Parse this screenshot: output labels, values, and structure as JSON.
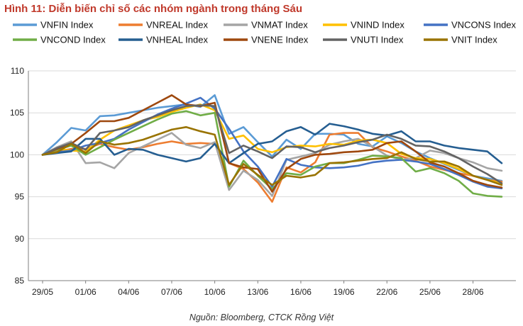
{
  "title": "Hình 11: Diễn biến chỉ số các nhóm ngành trong tháng Sáu",
  "source": "Nguồn: Bloomberg, CTCK Rồng Việt",
  "chart_data": {
    "type": "line",
    "title": "Hình 11: Diễn biến chỉ số các nhóm ngành trong tháng Sáu",
    "xlabel": "",
    "ylabel": "",
    "ylim": [
      85,
      110
    ],
    "yticks": [
      85,
      90,
      95,
      100,
      105,
      110
    ],
    "x_tick_labels": [
      "29/05",
      "01/06",
      "04/06",
      "07/06",
      "10/06",
      "13/06",
      "16/06",
      "19/06",
      "22/06",
      "25/06",
      "28/06"
    ],
    "categories": [
      "29/05",
      "30/05",
      "31/05",
      "01/06",
      "02/06",
      "03/06",
      "04/06",
      "05/06",
      "06/06",
      "07/06",
      "08/06",
      "09/06",
      "10/06",
      "11/06",
      "12/06",
      "13/06",
      "14/06",
      "15/06",
      "16/06",
      "17/06",
      "18/06",
      "19/06",
      "20/06",
      "21/06",
      "22/06",
      "23/06",
      "24/06",
      "25/06",
      "26/06",
      "27/06",
      "28/06",
      "29/06",
      "30/06"
    ],
    "grid": "horizontal",
    "legend_position": "top",
    "series": [
      {
        "name": "VNFIN Index",
        "color": "#5b9bd5",
        "values": [
          100,
          101.5,
          103.2,
          102.9,
          104.6,
          104.7,
          105.0,
          105.3,
          105.6,
          105.8,
          106.0,
          105.7,
          107.1,
          102.5,
          103.3,
          101.5,
          99.8,
          101.8,
          100.7,
          102.5,
          102.5,
          102.4,
          101.3,
          101.0,
          102.2,
          101.4,
          100.4,
          99.6,
          98.9,
          98.2,
          97.5,
          97.2,
          96.9
        ]
      },
      {
        "name": "VNREAL Index",
        "color": "#ed7d31",
        "values": [
          100,
          100.4,
          100.7,
          100.7,
          101.3,
          100.9,
          100.6,
          100.9,
          101.3,
          101.6,
          101.3,
          101.4,
          101.3,
          99.0,
          98.3,
          96.7,
          94.4,
          98.5,
          97.9,
          99.1,
          102.4,
          102.6,
          102.6,
          100.9,
          100.4,
          99.8,
          99.3,
          98.6,
          98.2,
          97.8,
          97.5,
          97.0,
          96.8
        ]
      },
      {
        "name": "VNMAT Index",
        "color": "#a5a5a5",
        "values": [
          100,
          100.9,
          101.6,
          99.0,
          99.1,
          98.4,
          100.2,
          101.0,
          101.8,
          102.6,
          101.2,
          100.8,
          101.5,
          95.8,
          98.1,
          97.0,
          95.1,
          99.4,
          99.8,
          100.2,
          101.2,
          101.6,
          101.9,
          101.0,
          99.9,
          99.4,
          99.6,
          100.5,
          100.2,
          99.6,
          99.1,
          98.4,
          98.1
        ]
      },
      {
        "name": "VNIND Index",
        "color": "#ffc000",
        "values": [
          100,
          100.7,
          100.5,
          100.4,
          101.8,
          102.9,
          103.5,
          104.1,
          104.5,
          105.1,
          105.6,
          106.0,
          105.3,
          101.9,
          102.3,
          100.7,
          100.3,
          100.9,
          101.1,
          101.0,
          101.3,
          101.2,
          101.7,
          101.8,
          101.4,
          100.1,
          99.6,
          99.5,
          99.0,
          98.3,
          97.5,
          97.0,
          96.6
        ]
      },
      {
        "name": "VNCONS Index",
        "color": "#4472c4",
        "values": [
          100,
          100.3,
          100.5,
          101.1,
          101.4,
          101.9,
          103.0,
          103.9,
          104.8,
          105.5,
          106.1,
          106.8,
          105.5,
          103.1,
          100.4,
          98.6,
          96.2,
          99.5,
          98.8,
          98.5,
          98.4,
          98.5,
          98.7,
          99.1,
          99.3,
          99.4,
          99.2,
          98.9,
          98.3,
          97.6,
          96.8,
          96.2,
          96.0
        ]
      },
      {
        "name": "VNCOND Index",
        "color": "#70ad47",
        "values": [
          100,
          100.6,
          101.1,
          100.0,
          100.9,
          101.8,
          102.6,
          103.4,
          104.2,
          104.9,
          105.2,
          104.7,
          105.0,
          96.2,
          99.3,
          97.5,
          95.9,
          97.8,
          97.6,
          98.6,
          99.0,
          99.0,
          99.4,
          99.9,
          99.8,
          99.6,
          98.0,
          98.4,
          97.8,
          96.9,
          95.4,
          95.1,
          95.0
        ]
      },
      {
        "name": "VNHEAL Index",
        "color": "#255e91",
        "values": [
          100,
          100.2,
          100.4,
          101.9,
          101.9,
          100.0,
          100.7,
          100.6,
          100.0,
          99.6,
          99.2,
          99.6,
          101.3,
          99.0,
          100.2,
          101.3,
          101.6,
          102.8,
          103.3,
          102.4,
          103.7,
          103.4,
          103.0,
          102.5,
          102.3,
          102.8,
          101.6,
          101.6,
          101.1,
          100.8,
          100.6,
          100.4,
          99.0
        ]
      },
      {
        "name": "VNENE Index",
        "color": "#9e480e",
        "values": [
          100,
          100.7,
          101.3,
          102.6,
          104.0,
          104.0,
          104.4,
          105.3,
          106.2,
          107.1,
          106.0,
          105.8,
          106.2,
          99.0,
          98.5,
          98.3,
          95.6,
          98.3,
          99.5,
          100.0,
          100.1,
          100.3,
          100.4,
          100.6,
          101.4,
          101.6,
          100.4,
          99.1,
          98.6,
          97.8,
          96.9,
          96.4,
          96.1
        ]
      },
      {
        "name": "VNUTI Index",
        "color": "#636363",
        "values": [
          100,
          100.8,
          101.4,
          100.6,
          102.6,
          102.9,
          103.3,
          104.1,
          104.7,
          105.3,
          105.8,
          105.9,
          105.8,
          100.2,
          101.1,
          100.4,
          99.6,
          101.0,
          100.9,
          100.3,
          100.8,
          101.1,
          101.5,
          101.8,
          102.4,
          101.9,
          101.1,
          101.0,
          100.4,
          99.6,
          98.6,
          97.7,
          96.6
        ]
      },
      {
        "name": "VNIT Index",
        "color": "#997300",
        "values": [
          100,
          100.3,
          101.3,
          100.2,
          101.6,
          101.2,
          101.4,
          101.8,
          102.4,
          103.0,
          103.3,
          102.8,
          102.4,
          96.4,
          98.9,
          97.6,
          96.4,
          97.5,
          97.3,
          97.6,
          99.0,
          99.1,
          99.3,
          99.5,
          99.6,
          100.3,
          99.5,
          99.2,
          99.2,
          98.6,
          97.5,
          97.0,
          96.4
        ]
      }
    ]
  }
}
